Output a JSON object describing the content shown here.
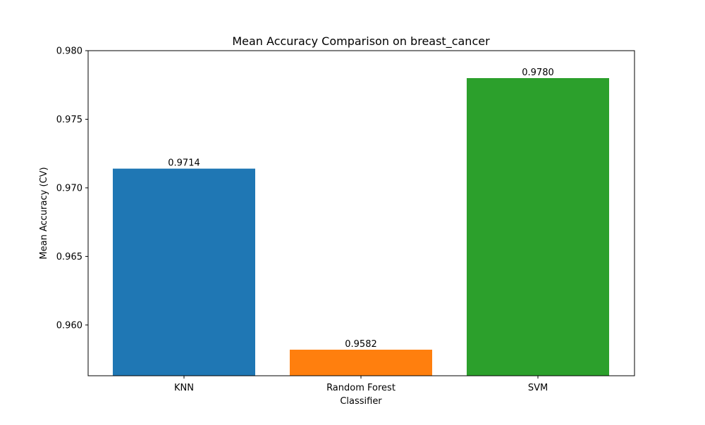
{
  "chart_data": {
    "type": "bar",
    "title": "Mean Accuracy Comparison on breast_cancer",
    "xlabel": "Classifier",
    "ylabel": "Mean Accuracy (CV)",
    "categories": [
      "KNN",
      "Random Forest",
      "SVM"
    ],
    "values": [
      0.9714,
      0.9582,
      0.978
    ],
    "data_labels": [
      "0.9714",
      "0.9582",
      "0.9780"
    ],
    "colors": [
      "#1f77b4",
      "#ff7f0e",
      "#2ca02c"
    ],
    "ylim": [
      0.9563,
      0.98
    ],
    "yticks": [
      0.96,
      0.965,
      0.97,
      0.975,
      0.98
    ],
    "ytick_labels": [
      "0.960",
      "0.965",
      "0.970",
      "0.975",
      "0.980"
    ],
    "grid": false,
    "legend": "none"
  }
}
